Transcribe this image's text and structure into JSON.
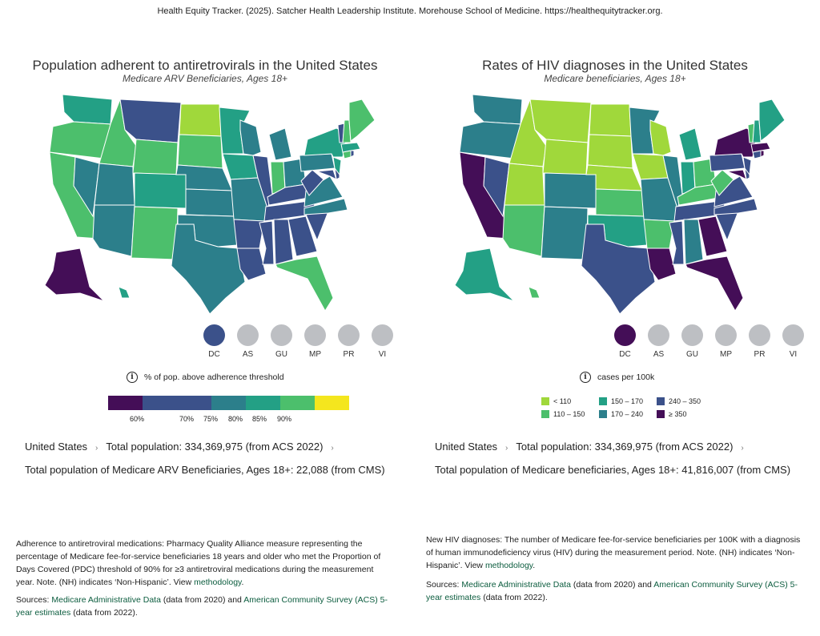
{
  "citation": "Health Equity Tracker. (2025). Satcher Health Leadership Institute. Morehouse School of Medicine. https://healthequitytracker.org.",
  "colors": {
    "c1": "#440e57",
    "c2": "#3b518a",
    "c3": "#2c7f8b",
    "c4": "#23a085",
    "c5": "#4cbf6c",
    "c6": "#a0d83b",
    "c7": "#f4e61e",
    "territory": "#bdbfc3"
  },
  "left": {
    "title": "Population adherent to antiretrovirals in the United States",
    "subtitle": "Medicare ARV Beneficiaries, Ages 18+",
    "territories": [
      {
        "code": "DC",
        "color": "c2"
      },
      {
        "code": "AS",
        "color": "territory"
      },
      {
        "code": "GU",
        "color": "territory"
      },
      {
        "code": "MP",
        "color": "territory"
      },
      {
        "code": "PR",
        "color": "territory"
      },
      {
        "code": "VI",
        "color": "territory"
      }
    ],
    "legend_title": "% of pop. above adherence threshold",
    "scale_labels": [
      "60%",
      "70%",
      "75%",
      "80%",
      "85%",
      "90%"
    ],
    "breadcrumb_root": "United States",
    "breadcrumb_pop": "Total population: 334,369,975 (from ACS 2022)",
    "total_population": "Total population of Medicare ARV Beneficiaries, Ages 18+: 22,088 (from CMS)",
    "desc_text": "Adherence to antiretroviral medications: Pharmacy Quality Alliance measure representing the percentage of Medicare fee-for-service beneficiaries 18 years and older who met the Proportion of Days Covered (PDC) threshold of 90% for ≥3 antiretroviral medications during the measurement year. Note. (NH) indicates ‘Non-Hispanic’. View",
    "desc_link": "methodology",
    "sources_prefix": "Sources:",
    "source1": "Medicare Administrative Data",
    "source1_suffix": "(data from 2020) and",
    "source2": "American Community Survey (ACS) 5-year estimates",
    "source2_suffix": "(data from 2022)."
  },
  "right": {
    "title": "Rates of HIV diagnoses in the United States",
    "subtitle": "Medicare beneficiaries, Ages 18+",
    "territories": [
      {
        "code": "DC",
        "color": "c1"
      },
      {
        "code": "AS",
        "color": "territory"
      },
      {
        "code": "GU",
        "color": "territory"
      },
      {
        "code": "MP",
        "color": "territory"
      },
      {
        "code": "PR",
        "color": "territory"
      },
      {
        "code": "VI",
        "color": "territory"
      }
    ],
    "legend_title": "cases per 100k",
    "bins": [
      {
        "label": "< 110",
        "color": "c6"
      },
      {
        "label": "110 – 150",
        "color": "c5"
      },
      {
        "label": "150 – 170",
        "color": "c4"
      },
      {
        "label": "170 – 240",
        "color": "c3"
      },
      {
        "label": "240 – 350",
        "color": "c2"
      },
      {
        "label": "≥ 350",
        "color": "c1"
      }
    ],
    "breadcrumb_root": "United States",
    "breadcrumb_pop": "Total population: 334,369,975 (from ACS 2022)",
    "total_population": "Total population of Medicare beneficiaries, Ages 18+: 41,816,007 (from CMS)",
    "desc_text": "New HIV diagnoses: The number of Medicare fee-for-service beneficiaries per 100K with a diagnosis of human immunodeficiency virus (HIV) during the measurement period. Note. (NH) indicates ‘Non-Hispanic’. View",
    "desc_link": "methodology",
    "sources_prefix": "Sources:",
    "source1": "Medicare Administrative Data",
    "source1_suffix": "(data from 2020) and",
    "source2": "American Community Survey (ACS) 5-year estimates",
    "source2_suffix": "(data from 2022)."
  },
  "state_colors": {
    "left": {
      "WA": "c4",
      "OR": "c5",
      "CA": "c5",
      "ID": "c5",
      "NV": "c3",
      "MT": "c2",
      "WY": "c5",
      "UT": "c3",
      "AZ": "c3",
      "CO": "c4",
      "NM": "c5",
      "ND": "c6",
      "SD": "c5",
      "NE": "c3",
      "KS": "c3",
      "OK": "c3",
      "TX": "c3",
      "MN": "c4",
      "IA": "c4",
      "MO": "c3",
      "AR": "c2",
      "LA": "c2",
      "WI": "c3",
      "IL": "c2",
      "MI": "c3",
      "IN": "c5",
      "OH": "c3",
      "KY": "c2",
      "TN": "c2",
      "MS": "c2",
      "AL": "c2",
      "GA": "c2",
      "FL": "c5",
      "SC": "c2",
      "NC": "c3",
      "VA": "c3",
      "WV": "c2",
      "MD": "c2",
      "DE": "c2",
      "PA": "c3",
      "NJ": "c4",
      "NY": "c4",
      "CT": "c5",
      "RI": "c2",
      "MA": "c4",
      "VT": "c2",
      "NH": "c5",
      "ME": "c5",
      "AK": "c1",
      "HI": "c4"
    },
    "right": {
      "WA": "c3",
      "OR": "c3",
      "CA": "c1",
      "ID": "c6",
      "NV": "c2",
      "MT": "c6",
      "WY": "c6",
      "UT": "c6",
      "AZ": "c5",
      "CO": "c3",
      "NM": "c3",
      "ND": "c6",
      "SD": "c6",
      "NE": "c6",
      "KS": "c5",
      "OK": "c4",
      "TX": "c2",
      "MN": "c3",
      "IA": "c6",
      "MO": "c3",
      "AR": "c5",
      "LA": "c1",
      "WI": "c6",
      "IL": "c3",
      "MI": "c4",
      "IN": "c4",
      "OH": "c5",
      "KY": "c5",
      "TN": "c2",
      "MS": "c2",
      "AL": "c3",
      "GA": "c1",
      "FL": "c1",
      "SC": "c2",
      "NC": "c2",
      "VA": "c2",
      "WV": "c5",
      "MD": "c1",
      "DE": "c2",
      "PA": "c2",
      "NJ": "c2",
      "NY": "c1",
      "CT": "c2",
      "RI": "c1",
      "MA": "c1",
      "VT": "c5",
      "NH": "c4",
      "ME": "c4",
      "AK": "c4",
      "HI": "c5"
    }
  }
}
